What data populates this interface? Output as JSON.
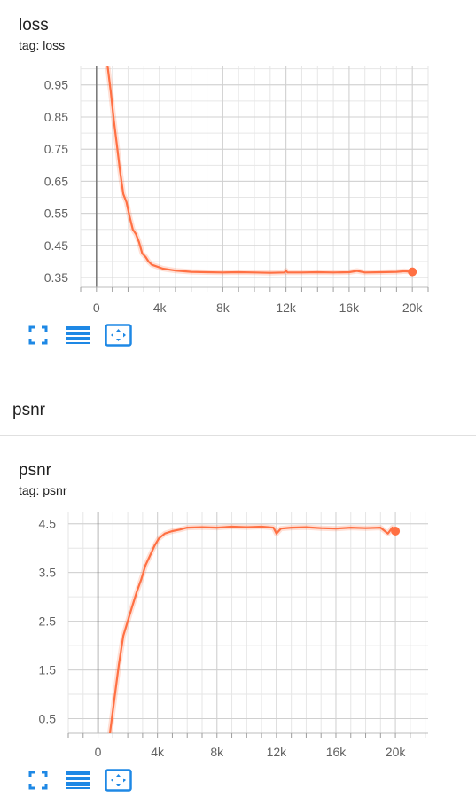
{
  "cards": [
    {
      "title": "loss",
      "tag": "tag: loss",
      "chart_data": {
        "type": "line",
        "title": "loss",
        "xlabel": "",
        "ylabel": "",
        "xlim": [
          -1000,
          21000
        ],
        "ylim": [
          0.32,
          1.01
        ],
        "x_ticks": [
          0,
          4000,
          8000,
          12000,
          16000,
          20000
        ],
        "x_tick_labels": [
          "0",
          "4k",
          "8k",
          "12k",
          "16k",
          "20k"
        ],
        "y_ticks": [
          0.35,
          0.45,
          0.55,
          0.65,
          0.75,
          0.85,
          0.95
        ],
        "y_tick_labels": [
          "0.35",
          "0.45",
          "0.55",
          "0.65",
          "0.75",
          "0.85",
          "0.95"
        ],
        "grid": true,
        "series": [
          {
            "color": "#ff7043",
            "x": [
              700,
              900,
              1100,
              1300,
              1500,
              1700,
              1900,
              2100,
              2300,
              2500,
              2700,
              2900,
              3100,
              3300,
              3500,
              3800,
              4200,
              4600,
              5000,
              5500,
              6000,
              7000,
              8000,
              9000,
              10000,
              11000,
              11900,
              12000,
              12100,
              13000,
              14000,
              15000,
              16000,
              16500,
              17000,
              18000,
              19000,
              19500,
              20000
            ],
            "y": [
              1.01,
              0.93,
              0.84,
              0.76,
              0.68,
              0.61,
              0.585,
              0.54,
              0.5,
              0.485,
              0.46,
              0.425,
              0.415,
              0.4,
              0.39,
              0.385,
              0.378,
              0.375,
              0.372,
              0.37,
              0.368,
              0.367,
              0.366,
              0.367,
              0.366,
              0.365,
              0.366,
              0.372,
              0.366,
              0.366,
              0.367,
              0.366,
              0.367,
              0.371,
              0.366,
              0.367,
              0.368,
              0.37,
              0.368
            ]
          }
        ]
      }
    },
    {
      "title": "psnr",
      "tag": "tag: psnr",
      "chart_data": {
        "type": "line",
        "title": "psnr",
        "xlabel": "",
        "ylabel": "",
        "xlim": [
          -2000,
          22200
        ],
        "ylim": [
          0.2,
          4.75
        ],
        "x_ticks": [
          0,
          4000,
          8000,
          12000,
          16000,
          20000
        ],
        "x_tick_labels": [
          "0",
          "4k",
          "8k",
          "12k",
          "16k",
          "20k"
        ],
        "y_ticks": [
          0.5,
          1.5,
          2.5,
          3.5,
          4.5
        ],
        "y_tick_labels": [
          "0.5",
          "1.5",
          "2.5",
          "3.5",
          "4.5"
        ],
        "grid": true,
        "series": [
          {
            "color": "#ff7043",
            "x": [
              800,
              1100,
              1400,
              1700,
              2000,
              2300,
              2600,
              2900,
              3200,
              3500,
              3800,
              4100,
              4500,
              5000,
              5500,
              6000,
              7000,
              8000,
              9000,
              10000,
              11000,
              11800,
              12000,
              12300,
              13000,
              14000,
              15000,
              16000,
              17000,
              18000,
              19000,
              19500,
              19800,
              20000
            ],
            "y": [
              0.2,
              0.9,
              1.6,
              2.2,
              2.5,
              2.8,
              3.1,
              3.35,
              3.65,
              3.85,
              4.05,
              4.2,
              4.3,
              4.35,
              4.38,
              4.42,
              4.43,
              4.42,
              4.44,
              4.43,
              4.44,
              4.42,
              4.3,
              4.4,
              4.42,
              4.43,
              4.41,
              4.4,
              4.42,
              4.41,
              4.42,
              4.3,
              4.42,
              4.35
            ]
          }
        ]
      }
    }
  ],
  "section": {
    "title": "psnr"
  },
  "toolbar": {
    "icons": [
      "fullscreen-icon",
      "data-selection-icon",
      "fit-domain-icon"
    ]
  }
}
